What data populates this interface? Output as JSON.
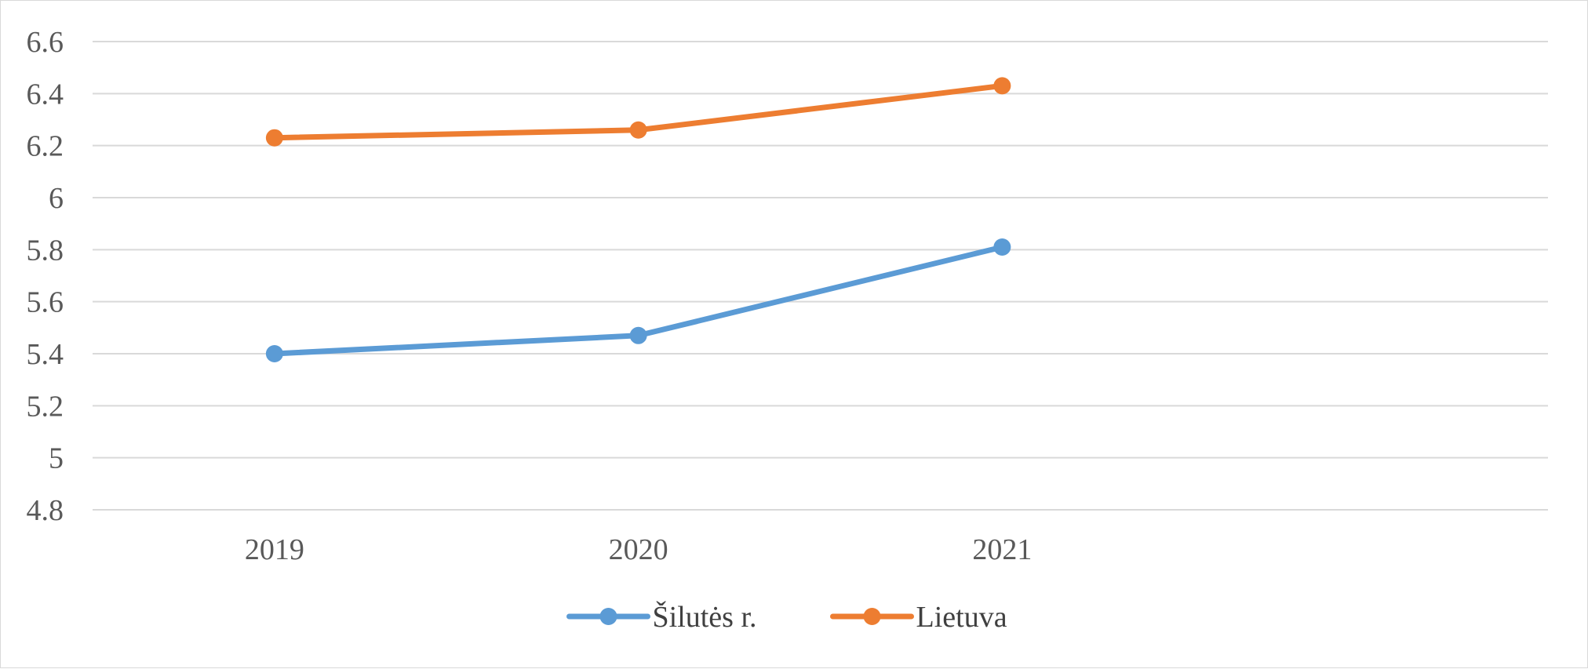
{
  "chart_data": {
    "type": "line",
    "title": "",
    "xlabel": "",
    "ylabel": "",
    "categories": [
      "2019",
      "2020",
      "2021"
    ],
    "x_slots": 4,
    "ylim": [
      4.8,
      6.6
    ],
    "yticks": [
      4.8,
      5,
      5.2,
      5.4,
      5.6,
      5.8,
      6,
      6.2,
      6.4,
      6.6
    ],
    "ytick_labels": [
      "4.8",
      "5",
      "5.2",
      "5.4",
      "5.6",
      "5.8",
      "6",
      "6.2",
      "6.4",
      "6.6"
    ],
    "grid": true,
    "legend_position": "bottom",
    "series": [
      {
        "name": "Šilutės r.",
        "color": "#5b9bd5",
        "values": [
          5.4,
          5.47,
          5.81
        ]
      },
      {
        "name": "Lietuva",
        "color": "#ed7d31",
        "values": [
          6.23,
          6.26,
          6.43
        ]
      }
    ]
  }
}
